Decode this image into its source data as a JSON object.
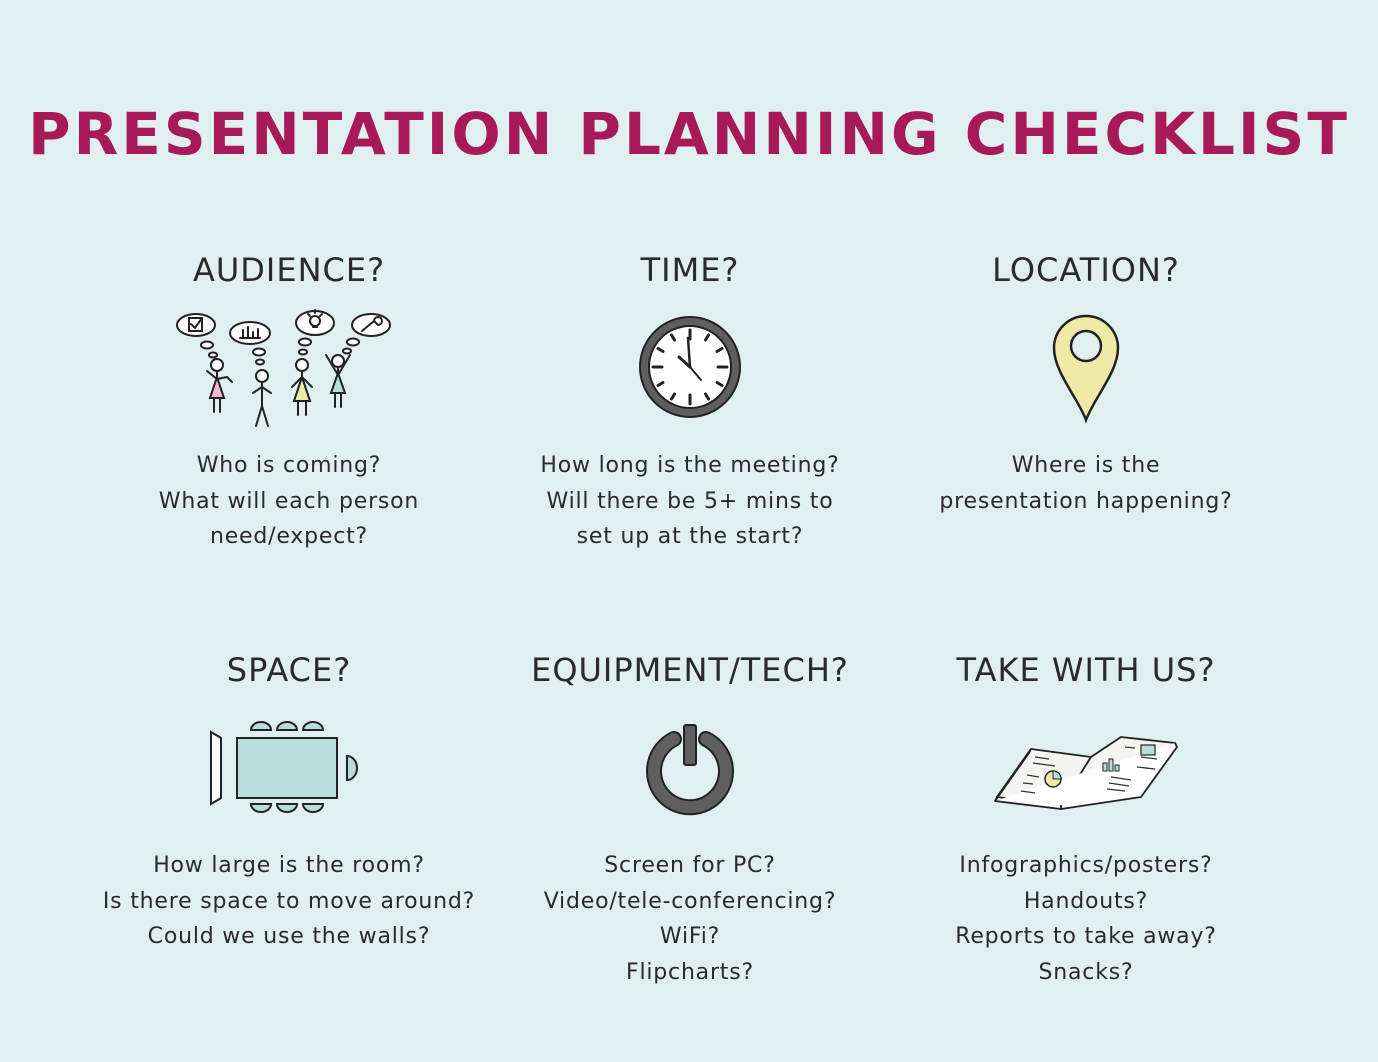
{
  "title": "PRESENTATION PLANNING CHECKLIST",
  "colors": {
    "background": "#e0eff0",
    "title": "#a8195a",
    "pink": "#f4b8d0",
    "yellow": "#efe9a6",
    "teal": "#b9dcdc",
    "grey": "#5f5f5f"
  },
  "sections": [
    {
      "heading": "AUDIENCE?",
      "icon": "audience-icon",
      "lines": [
        "Who is coming?",
        "What will each person",
        "need/expect?"
      ]
    },
    {
      "heading": "TIME?",
      "icon": "clock-icon",
      "lines": [
        "How long is the meeting?",
        "Will there be 5+ mins to",
        "set up at the start?"
      ]
    },
    {
      "heading": "LOCATION?",
      "icon": "location-pin-icon",
      "lines": [
        "Where is the",
        "presentation happening?"
      ]
    },
    {
      "heading": "SPACE?",
      "icon": "room-layout-icon",
      "lines": [
        "How large is the room?",
        "Is there space to move around?",
        "Could we use the walls?"
      ]
    },
    {
      "heading": "EQUIPMENT/TECH?",
      "icon": "power-icon",
      "lines": [
        "Screen for PC?",
        "Video/tele-conferencing?",
        "WiFi?",
        "Flipcharts?"
      ]
    },
    {
      "heading": "TAKE WITH US?",
      "icon": "open-book-icon",
      "lines": [
        "Infographics/posters?",
        "Handouts?",
        "Reports to take away?",
        "Snacks?"
      ]
    }
  ]
}
